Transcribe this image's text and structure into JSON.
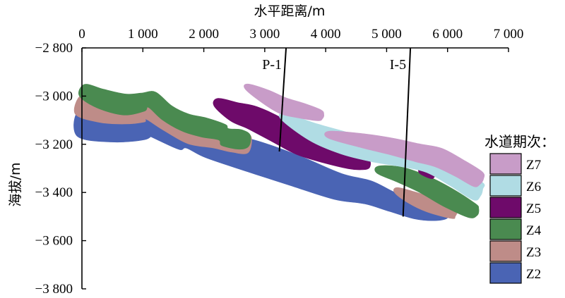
{
  "x_axis": {
    "title": "水平距离/m",
    "ticks": [
      {
        "value": 0,
        "label": "0"
      },
      {
        "value": 1000,
        "label": "1 000"
      },
      {
        "value": 2000,
        "label": "2 000"
      },
      {
        "value": 3000,
        "label": "3 000"
      },
      {
        "value": 4000,
        "label": "4 000"
      },
      {
        "value": 5000,
        "label": "5 000"
      },
      {
        "value": 6000,
        "label": "6 000"
      },
      {
        "value": 7000,
        "label": "7 000"
      }
    ]
  },
  "y_axis": {
    "title": "海拔/m",
    "ticks": [
      {
        "value": -2800,
        "label": "−2 800"
      },
      {
        "value": -3000,
        "label": "−3 000"
      },
      {
        "value": -3200,
        "label": "−3 200"
      },
      {
        "value": -3400,
        "label": "−3 400"
      },
      {
        "value": -3600,
        "label": "−3 600"
      },
      {
        "value": -3800,
        "label": "−3 800"
      }
    ]
  },
  "wells": [
    {
      "name": "P-1",
      "top": [
        3350,
        -2800
      ],
      "bottom": [
        3240,
        -3230
      ]
    },
    {
      "name": "I-5",
      "top": [
        5390,
        -2800
      ],
      "bottom": [
        5270,
        -3500
      ]
    }
  ],
  "legend": {
    "title": "水道期次：",
    "items": [
      {
        "name": "Z7",
        "color": "#C89CC8"
      },
      {
        "name": "Z6",
        "color": "#B0DCE4"
      },
      {
        "name": "Z5",
        "color": "#6E0A6A"
      },
      {
        "name": "Z4",
        "color": "#4A8A50"
      },
      {
        "name": "Z3",
        "color": "#BE8C88"
      },
      {
        "name": "Z2",
        "color": "#4A64B4"
      }
    ]
  },
  "channels": [
    {
      "series": "Z2",
      "color": "#4A64B4",
      "centerline": [
        [
          -60,
          -3110
        ],
        [
          500,
          -3125
        ],
        [
          1000,
          -3120
        ],
        [
          1030,
          -3110
        ],
        [
          1100,
          -3105
        ],
        [
          1350,
          -3140
        ],
        [
          1650,
          -3180
        ],
        [
          1750,
          -3170
        ],
        [
          2100,
          -3200
        ],
        [
          2800,
          -3250
        ],
        [
          3500,
          -3310
        ],
        [
          4200,
          -3375
        ],
        [
          4700,
          -3400
        ],
        [
          5100,
          -3440
        ],
        [
          5500,
          -3470
        ],
        [
          5800,
          -3485
        ],
        [
          6000,
          -3485
        ]
      ],
      "thickness": [
        38,
        45,
        42,
        38,
        36,
        34,
        30,
        32,
        40,
        46,
        44,
        38,
        34,
        28,
        28,
        22,
        14
      ]
    },
    {
      "series": "Z3",
      "color": "#BE8C88",
      "centerline": [
        [
          -60,
          -3035
        ],
        [
          300,
          -3065
        ],
        [
          700,
          -3075
        ],
        [
          1000,
          -3070
        ],
        [
          1100,
          -3060
        ],
        [
          1400,
          -3100
        ],
        [
          1800,
          -3150
        ],
        [
          2200,
          -3170
        ],
        [
          2500,
          -3190
        ],
        [
          2750,
          -3200
        ]
      ],
      "thickness": [
        28,
        30,
        28,
        26,
        26,
        30,
        34,
        32,
        30,
        24
      ]
    },
    {
      "series": "Z3",
      "color": "#BE8C88",
      "centerline": [
        [
          5150,
          -3390
        ],
        [
          5400,
          -3420
        ],
        [
          5700,
          -3450
        ],
        [
          6100,
          -3480
        ],
        [
          6150,
          -3485
        ]
      ],
      "thickness": [
        8,
        18,
        22,
        20,
        10
      ]
    },
    {
      "series": "Z4",
      "color": "#4A8A50",
      "centerline": [
        [
          0,
          -2975
        ],
        [
          300,
          -3010
        ],
        [
          700,
          -3035
        ],
        [
          1000,
          -3025
        ],
        [
          1150,
          -3015
        ],
        [
          1400,
          -3070
        ],
        [
          1700,
          -3110
        ],
        [
          2000,
          -3130
        ],
        [
          2300,
          -3150
        ],
        [
          2350,
          -3170
        ],
        [
          2600,
          -3180
        ],
        [
          2750,
          -3185
        ]
      ],
      "thickness": [
        18,
        28,
        30,
        26,
        24,
        24,
        26,
        28,
        24,
        26,
        28,
        16
      ]
    },
    {
      "series": "Z4",
      "color": "#4A8A50",
      "centerline": [
        [
          4850,
          -3305
        ],
        [
          5200,
          -3325
        ],
        [
          5600,
          -3365
        ],
        [
          6000,
          -3420
        ],
        [
          6400,
          -3475
        ],
        [
          6500,
          -3480
        ]
      ],
      "thickness": [
        10,
        22,
        26,
        28,
        22,
        10
      ]
    },
    {
      "series": "Z5",
      "color": "#6E0A6A",
      "centerline": [
        [
          2200,
          -3025
        ],
        [
          2500,
          -3065
        ],
        [
          2800,
          -3090
        ],
        [
          3200,
          -3140
        ],
        [
          3600,
          -3200
        ],
        [
          4000,
          -3240
        ],
        [
          4400,
          -3270
        ],
        [
          4600,
          -3280
        ],
        [
          4720,
          -3285
        ]
      ],
      "thickness": [
        12,
        28,
        34,
        36,
        32,
        26,
        22,
        18,
        10
      ]
    },
    {
      "series": "Z5",
      "color": "#6E0A6A",
      "centerline": [
        [
          5550,
          -3305
        ],
        [
          5750,
          -3320
        ],
        [
          5800,
          -3325
        ]
      ],
      "thickness": [
        10,
        16,
        8
      ]
    },
    {
      "series": "Z6",
      "color": "#B0DCE4",
      "centerline": [
        [
          3300,
          -3085
        ],
        [
          3800,
          -3150
        ],
        [
          4300,
          -3195
        ],
        [
          4800,
          -3230
        ],
        [
          5300,
          -3260
        ],
        [
          5700,
          -3290
        ],
        [
          6100,
          -3340
        ],
        [
          6500,
          -3395
        ],
        [
          6560,
          -3400
        ]
      ],
      "thickness": [
        10,
        26,
        32,
        30,
        24,
        20,
        24,
        28,
        10
      ]
    },
    {
      "series": "Z7",
      "color": "#C89CC8",
      "centerline": [
        [
          2700,
          -2960
        ],
        [
          3000,
          -3000
        ],
        [
          3300,
          -3040
        ],
        [
          3600,
          -3060
        ],
        [
          3900,
          -3080
        ],
        [
          3960,
          -3085
        ]
      ],
      "thickness": [
        8,
        20,
        24,
        22,
        16,
        6
      ]
    },
    {
      "series": "Z7",
      "color": "#C89CC8",
      "centerline": [
        [
          4050,
          -3160
        ],
        [
          4600,
          -3185
        ],
        [
          5100,
          -3210
        ],
        [
          5500,
          -3235
        ],
        [
          5850,
          -3255
        ],
        [
          6200,
          -3300
        ],
        [
          6500,
          -3345
        ],
        [
          6560,
          -3355
        ]
      ],
      "thickness": [
        10,
        20,
        24,
        26,
        28,
        26,
        24,
        10
      ]
    }
  ]
}
